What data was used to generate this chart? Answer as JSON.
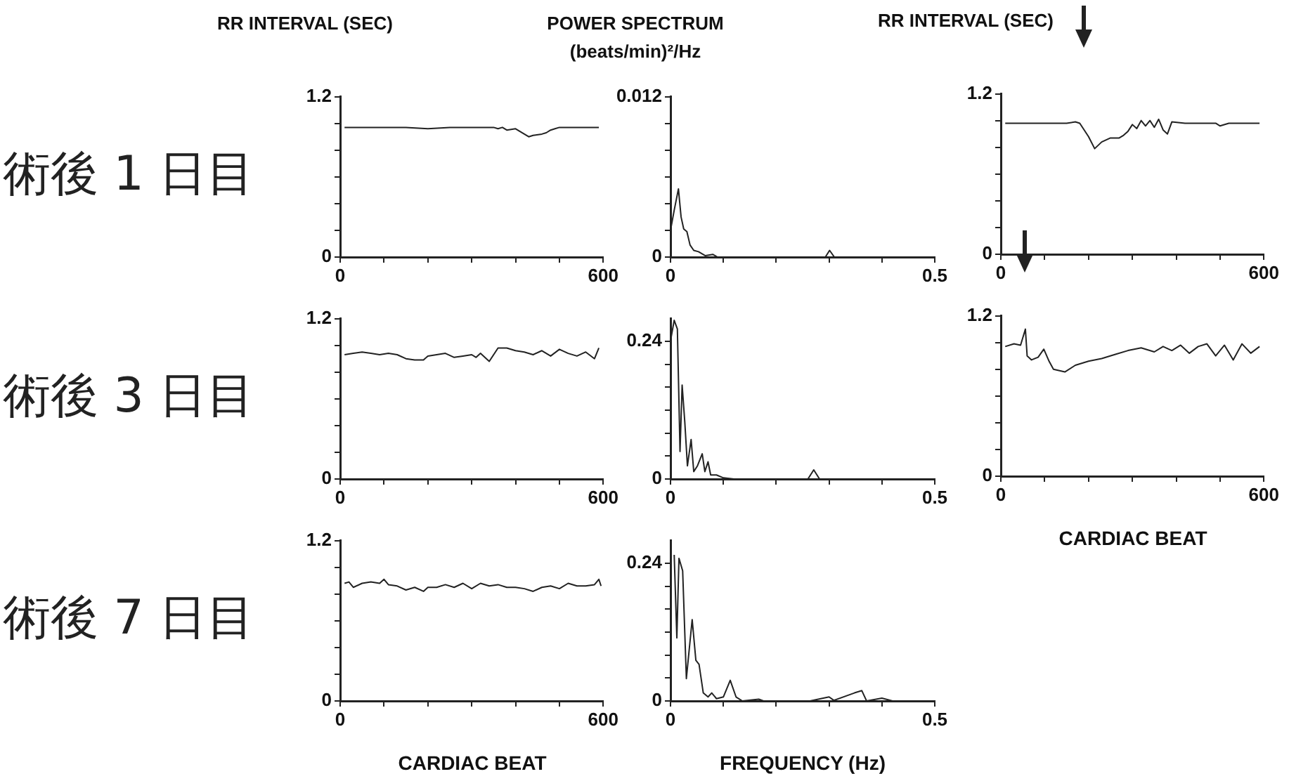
{
  "chart_data": [
    {
      "type": "line",
      "title": "術後 1 日目",
      "ylabel": "RR INTERVAL (SEC)",
      "color": "#222222",
      "xlim": [
        0,
        600
      ],
      "ylim": [
        0,
        1.2
      ],
      "xticks": [
        0,
        {
          "value": 100,
          "label": null
        },
        {
          "value": 200,
          "label": null
        },
        {
          "value": 300,
          "label": null
        },
        {
          "value": 400,
          "label": null
        },
        {
          "value": 500,
          "label": null
        },
        600
      ],
      "yticks": [
        0,
        {
          "value": 0.2,
          "label": null
        },
        {
          "value": 0.4,
          "label": null
        },
        {
          "value": 0.6,
          "label": null
        },
        {
          "value": 0.8,
          "label": null
        },
        {
          "value": 1.0,
          "label": null
        },
        1.2
      ],
      "x": [
        10,
        50,
        100,
        150,
        200,
        250,
        300,
        350,
        360,
        370,
        380,
        400,
        420,
        430,
        440,
        460,
        470,
        480,
        490,
        500,
        550,
        590
      ],
      "values": [
        0.97,
        0.97,
        0.97,
        0.97,
        0.96,
        0.97,
        0.97,
        0.97,
        0.96,
        0.97,
        0.95,
        0.96,
        0.92,
        0.9,
        0.91,
        0.92,
        0.93,
        0.95,
        0.96,
        0.97,
        0.97,
        0.97
      ]
    },
    {
      "type": "line",
      "ylabel": "POWER SPECTRUM (beats/min)²/Hz",
      "color": "#222222",
      "xlim": [
        0,
        0.5
      ],
      "ylim": [
        0,
        0.012
      ],
      "xticks": [
        0,
        {
          "value": 0.1,
          "label": null
        },
        {
          "value": 0.2,
          "label": null
        },
        {
          "value": 0.3,
          "label": null
        },
        {
          "value": 0.4,
          "label": null
        },
        0.5
      ],
      "yticks": [
        0,
        {
          "value": 0.002,
          "label": null
        },
        {
          "value": 0.004,
          "label": null
        },
        {
          "value": 0.006,
          "label": null
        },
        {
          "value": 0.008,
          "label": null
        },
        {
          "value": 0.01,
          "label": null
        },
        0.012
      ],
      "x": [
        0,
        0.007,
        0.015,
        0.02,
        0.025,
        0.031,
        0.037,
        0.044,
        0.053,
        0.066,
        0.08,
        0.089,
        0.2,
        0.293,
        0.301,
        0.31,
        0.5
      ],
      "values": [
        0.002,
        0.0035,
        0.0051,
        0.003,
        0.0021,
        0.0019,
        0.0009,
        0.0005,
        0.0004,
        0.0001,
        0.0002,
        0,
        0,
        0,
        0.0005,
        0,
        0
      ]
    },
    {
      "type": "line",
      "ylabel": "RR INTERVAL (SEC)",
      "color": "#222222",
      "xlim": [
        0,
        600
      ],
      "ylim": [
        0,
        1.2
      ],
      "xticks": [
        0,
        {
          "value": 100,
          "label": null
        },
        {
          "value": 200,
          "label": null
        },
        {
          "value": 300,
          "label": null
        },
        {
          "value": 400,
          "label": null
        },
        {
          "value": 500,
          "label": null
        },
        600
      ],
      "yticks": [
        0,
        {
          "value": 0.2,
          "label": null
        },
        {
          "value": 0.4,
          "label": null
        },
        {
          "value": 0.6,
          "label": null
        },
        {
          "value": 0.8,
          "label": null
        },
        {
          "value": 1.0,
          "label": null
        },
        1.2
      ],
      "x": [
        10,
        50,
        100,
        150,
        170,
        180,
        190,
        200,
        214,
        230,
        250,
        270,
        280,
        290,
        300,
        310,
        320,
        330,
        340,
        350,
        360,
        370,
        380,
        390,
        420,
        450,
        490,
        500,
        520,
        590
      ],
      "values": [
        0.98,
        0.98,
        0.98,
        0.98,
        0.99,
        0.98,
        0.93,
        0.88,
        0.79,
        0.84,
        0.87,
        0.87,
        0.89,
        0.92,
        0.97,
        0.94,
        1.0,
        0.96,
        1.0,
        0.95,
        1.01,
        0.93,
        0.9,
        0.99,
        0.98,
        0.98,
        0.98,
        0.96,
        0.98,
        0.98
      ]
    },
    {
      "type": "line",
      "title": "術後 3 日目",
      "color": "#222222",
      "xlim": [
        0,
        600
      ],
      "ylim": [
        0,
        1.2
      ],
      "xticks": [
        0,
        {
          "value": 100,
          "label": null
        },
        {
          "value": 200,
          "label": null
        },
        {
          "value": 300,
          "label": null
        },
        {
          "value": 400,
          "label": null
        },
        {
          "value": 500,
          "label": null
        },
        600
      ],
      "yticks": [
        0,
        {
          "value": 0.2,
          "label": null
        },
        {
          "value": 0.4,
          "label": null
        },
        {
          "value": 0.6,
          "label": null
        },
        {
          "value": 0.8,
          "label": null
        },
        {
          "value": 1.0,
          "label": null
        },
        1.2
      ],
      "x": [
        10,
        30,
        50,
        70,
        90,
        110,
        130,
        150,
        170,
        190,
        200,
        220,
        240,
        260,
        280,
        300,
        310,
        320,
        340,
        360,
        380,
        400,
        420,
        440,
        460,
        480,
        500,
        520,
        540,
        560,
        580,
        590
      ],
      "values": [
        0.93,
        0.94,
        0.95,
        0.94,
        0.93,
        0.94,
        0.93,
        0.9,
        0.89,
        0.89,
        0.92,
        0.93,
        0.94,
        0.91,
        0.92,
        0.93,
        0.91,
        0.94,
        0.88,
        0.98,
        0.98,
        0.96,
        0.95,
        0.93,
        0.96,
        0.92,
        0.97,
        0.94,
        0.92,
        0.95,
        0.9,
        0.98
      ]
    },
    {
      "type": "line",
      "color": "#222222",
      "xlim": [
        0,
        0.5
      ],
      "ylim": [
        0,
        0.28
      ],
      "xticks": [
        0,
        {
          "value": 0.1,
          "label": null
        },
        {
          "value": 0.2,
          "label": null
        },
        {
          "value": 0.3,
          "label": null
        },
        {
          "value": 0.4,
          "label": null
        },
        0.5
      ],
      "yticks": [
        0,
        {
          "value": 0.04,
          "label": null
        },
        {
          "value": 0.08,
          "label": null
        },
        {
          "value": 0.12,
          "label": null
        },
        {
          "value": 0.16,
          "label": null
        },
        {
          "value": 0.2,
          "label": null
        },
        0.24
      ],
      "x": [
        0,
        0.007,
        0.013,
        0.018,
        0.022,
        0.027,
        0.032,
        0.039,
        0.044,
        0.051,
        0.06,
        0.065,
        0.071,
        0.076,
        0.087,
        0.1,
        0.12,
        0.26,
        0.271,
        0.282,
        0.5
      ],
      "values": [
        0.241,
        0.277,
        0.262,
        0.048,
        0.164,
        0.1,
        0.023,
        0.069,
        0.013,
        0.023,
        0.044,
        0.013,
        0.03,
        0.007,
        0.007,
        0.002,
        0,
        0,
        0.016,
        0,
        0
      ]
    },
    {
      "type": "line",
      "color": "#222222",
      "xlim": [
        0,
        600
      ],
      "ylim": [
        0,
        1.2
      ],
      "xlabel": "CARDIAC BEAT",
      "xticks": [
        0,
        {
          "value": 100,
          "label": null
        },
        {
          "value": 200,
          "label": null
        },
        {
          "value": 300,
          "label": null
        },
        {
          "value": 400,
          "label": null
        },
        {
          "value": 500,
          "label": null
        },
        600
      ],
      "yticks": [
        0,
        {
          "value": 0.2,
          "label": null
        },
        {
          "value": 0.4,
          "label": null
        },
        {
          "value": 0.6,
          "label": null
        },
        {
          "value": 0.8,
          "label": null
        },
        {
          "value": 1.0,
          "label": null
        },
        1.2
      ],
      "x": [
        10,
        30,
        45,
        56,
        60,
        70,
        85,
        98,
        110,
        120,
        146,
        170,
        200,
        230,
        260,
        290,
        320,
        350,
        370,
        390,
        410,
        430,
        450,
        470,
        490,
        510,
        530,
        550,
        570,
        590
      ],
      "values": [
        0.97,
        0.99,
        0.98,
        1.1,
        0.9,
        0.87,
        0.89,
        0.95,
        0.86,
        0.8,
        0.78,
        0.83,
        0.86,
        0.88,
        0.91,
        0.94,
        0.96,
        0.93,
        0.97,
        0.94,
        0.98,
        0.92,
        0.97,
        0.99,
        0.9,
        0.98,
        0.87,
        0.99,
        0.92,
        0.97
      ]
    },
    {
      "type": "line",
      "title": "術後 7 日目",
      "xlabel": "CARDIAC BEAT",
      "color": "#222222",
      "xlim": [
        0,
        600
      ],
      "ylim": [
        0,
        1.2
      ],
      "xticks": [
        0,
        {
          "value": 100,
          "label": null
        },
        {
          "value": 200,
          "label": null
        },
        {
          "value": 300,
          "label": null
        },
        {
          "value": 400,
          "label": null
        },
        {
          "value": 500,
          "label": null
        },
        600
      ],
      "yticks": [
        0,
        {
          "value": 0.2,
          "label": null
        },
        {
          "value": 0.4,
          "label": null
        },
        {
          "value": 0.6,
          "label": null
        },
        {
          "value": 0.8,
          "label": null
        },
        {
          "value": 1.0,
          "label": null
        },
        1.2
      ],
      "x": [
        10,
        20,
        30,
        50,
        70,
        90,
        100,
        110,
        130,
        150,
        170,
        190,
        200,
        220,
        240,
        260,
        280,
        300,
        320,
        340,
        360,
        380,
        400,
        420,
        440,
        460,
        480,
        500,
        520,
        540,
        560,
        580,
        590,
        595
      ],
      "values": [
        0.88,
        0.89,
        0.85,
        0.88,
        0.89,
        0.88,
        0.91,
        0.87,
        0.86,
        0.83,
        0.85,
        0.82,
        0.85,
        0.85,
        0.87,
        0.85,
        0.88,
        0.84,
        0.88,
        0.86,
        0.87,
        0.85,
        0.85,
        0.84,
        0.82,
        0.85,
        0.86,
        0.84,
        0.88,
        0.86,
        0.86,
        0.87,
        0.91,
        0.86
      ]
    },
    {
      "type": "line",
      "xlabel": "FREQUENCY (Hz)",
      "color": "#222222",
      "xlim": [
        0,
        0.5
      ],
      "ylim": [
        0,
        0.28
      ],
      "xticks": [
        0,
        {
          "value": 0.1,
          "label": null
        },
        {
          "value": 0.2,
          "label": null
        },
        {
          "value": 0.3,
          "label": null
        },
        {
          "value": 0.4,
          "label": null
        },
        0.5
      ],
      "yticks": [
        0,
        {
          "value": 0.04,
          "label": null
        },
        {
          "value": 0.08,
          "label": null
        },
        {
          "value": 0.12,
          "label": null
        },
        {
          "value": 0.16,
          "label": null
        },
        {
          "value": 0.2,
          "label": null
        },
        0.24
      ],
      "x": [
        0.007,
        0.012,
        0.016,
        0.023,
        0.03,
        0.041,
        0.048,
        0.054,
        0.062,
        0.071,
        0.078,
        0.087,
        0.1,
        0.113,
        0.124,
        0.136,
        0.167,
        0.176,
        0.264,
        0.3,
        0.309,
        0.348,
        0.362,
        0.371,
        0.4,
        0.42,
        0.5
      ],
      "values": [
        0.255,
        0.11,
        0.249,
        0.227,
        0.039,
        0.142,
        0.071,
        0.064,
        0.014,
        0.007,
        0.014,
        0.004,
        0.007,
        0.036,
        0.007,
        0,
        0.003,
        0,
        0,
        0.007,
        0.001,
        0.014,
        0.018,
        0,
        0.005,
        0,
        0
      ]
    }
  ]
}
